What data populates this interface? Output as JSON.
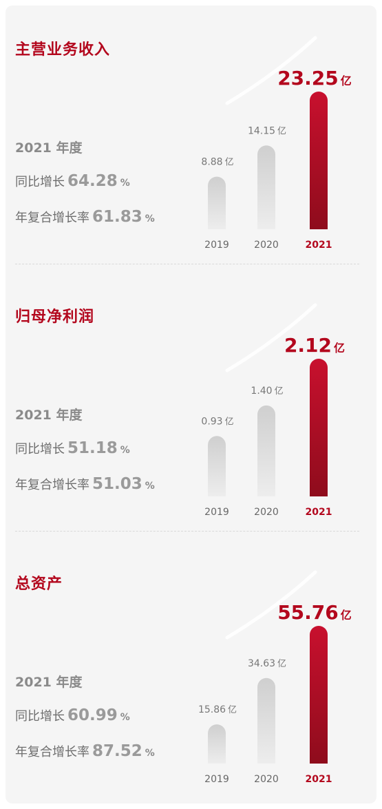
{
  "colors": {
    "accent": "#b3071d",
    "bar_gray": "#c8c8c8",
    "text_gray": "#8a8a8a"
  },
  "sections": [
    {
      "title": "主营业务收入",
      "stat_year": "2021 年度",
      "yoy_label": "同比增长",
      "yoy_value": "64.28",
      "cagr_label": "年复合增长率",
      "cagr_value": "61.83",
      "pct_unit": "%"
    },
    {
      "title": "归母净利润",
      "stat_year": "2021 年度",
      "yoy_label": "同比增长",
      "yoy_value": "51.18",
      "cagr_label": "年复合增长率",
      "cagr_value": "51.03",
      "pct_unit": "%"
    },
    {
      "title": "总资产",
      "stat_year": "2021 年度",
      "yoy_label": "同比增长",
      "yoy_value": "60.99",
      "cagr_label": "年复合增长率",
      "cagr_value": "87.52",
      "pct_unit": "%"
    }
  ],
  "chart_data": [
    {
      "type": "bar",
      "title": "主营业务收入",
      "categories": [
        "2019",
        "2020",
        "2021"
      ],
      "values": [
        8.88,
        14.15,
        23.25
      ],
      "value_labels": [
        "8.88",
        "14.15",
        "23.25"
      ],
      "unit": "亿",
      "highlight_index": 2
    },
    {
      "type": "bar",
      "title": "归母净利润",
      "categories": [
        "2019",
        "2020",
        "2021"
      ],
      "values": [
        0.93,
        1.4,
        2.12
      ],
      "value_labels": [
        "0.93",
        "1.40",
        "2.12"
      ],
      "unit": "亿",
      "highlight_index": 2
    },
    {
      "type": "bar",
      "title": "总资产",
      "categories": [
        "2019",
        "2020",
        "2021"
      ],
      "values": [
        15.86,
        34.63,
        55.76
      ],
      "value_labels": [
        "15.86",
        "34.63",
        "55.76"
      ],
      "unit": "亿",
      "highlight_index": 2
    }
  ]
}
